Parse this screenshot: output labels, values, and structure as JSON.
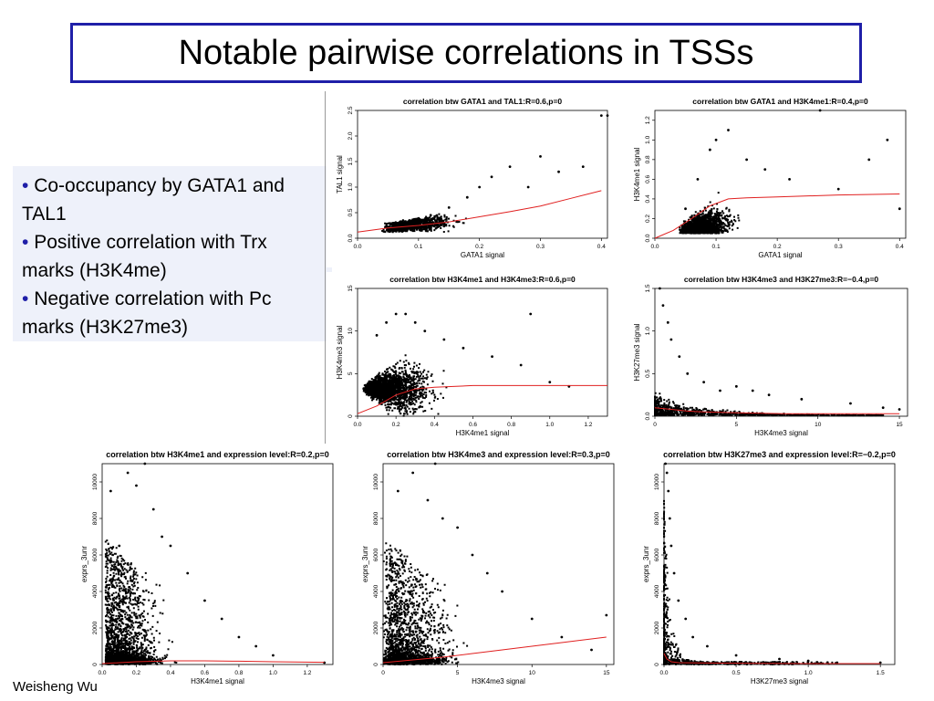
{
  "slide": {
    "title": "Notable pairwise correlations in TSSs",
    "bullets": [
      "Co-occupancy by GATA1 and TAL1",
      "Positive correlation with Trx marks (H3K4me)",
      "Negative correlation with Pc marks (H3K27me3)"
    ],
    "author": "Weisheng Wu"
  },
  "colors": {
    "title_border": "#1f1fa8",
    "bullet_dot": "#1f1fa8",
    "bullet_bg": "#eef1fa",
    "points": "#000000",
    "fit_line": "#e02020"
  },
  "chart_data": [
    {
      "type": "scatter",
      "title": "correlation btw GATA1 and TAL1:R=0.6,p=0",
      "xlabel": "GATA1 signal",
      "ylabel": "TAL1 signal",
      "xlim": [
        0,
        0.41
      ],
      "ylim": [
        0,
        2.5
      ],
      "xticks": [
        "0.0",
        "0.1",
        "0.2",
        "0.3",
        "0.4"
      ],
      "yticks": [
        "0.0",
        "0.5",
        "1.0",
        "1.5",
        "2.0",
        "2.5"
      ],
      "xtick_values": [
        0,
        0.1,
        0.2,
        0.3,
        0.4
      ],
      "ytick_values": [
        0,
        0.5,
        1,
        1.5,
        2,
        2.5
      ],
      "fit_line": {
        "x": [
          0.0,
          0.05,
          0.1,
          0.15,
          0.2,
          0.25,
          0.3,
          0.35,
          0.4
        ],
        "y": [
          0.12,
          0.2,
          0.25,
          0.32,
          0.42,
          0.52,
          0.63,
          0.78,
          0.93
        ]
      },
      "sample_points": {
        "x": [
          0.05,
          0.07,
          0.09,
          0.12,
          0.15,
          0.18,
          0.2,
          0.22,
          0.25,
          0.28,
          0.3,
          0.33,
          0.37,
          0.4,
          0.41
        ],
        "y": [
          0.2,
          0.25,
          0.3,
          0.45,
          0.6,
          0.8,
          1.0,
          1.2,
          1.4,
          1.0,
          1.6,
          1.3,
          1.4,
          2.4,
          2.4
        ]
      }
    },
    {
      "type": "scatter",
      "title": "correlation btw GATA1 and H3K4me1:R=0.4,p=0",
      "xlabel": "GATA1 signal",
      "ylabel": "H3K4me1 signal",
      "xlim": [
        0,
        0.41
      ],
      "ylim": [
        0,
        1.3
      ],
      "xticks": [
        "0.0",
        "0.1",
        "0.2",
        "0.3",
        "0.4"
      ],
      "yticks": [
        "0.0",
        "0.2",
        "0.4",
        "0.6",
        "0.8",
        "1.0",
        "1.2"
      ],
      "xtick_values": [
        0,
        0.1,
        0.2,
        0.3,
        0.4
      ],
      "ytick_values": [
        0,
        0.2,
        0.4,
        0.6,
        0.8,
        1.0,
        1.2
      ],
      "fit_line": {
        "x": [
          0.0,
          0.03,
          0.06,
          0.09,
          0.12,
          0.15,
          0.2,
          0.3,
          0.4
        ],
        "y": [
          0.0,
          0.08,
          0.2,
          0.33,
          0.4,
          0.41,
          0.42,
          0.44,
          0.45
        ]
      },
      "sample_points": {
        "x": [
          0.05,
          0.07,
          0.09,
          0.1,
          0.12,
          0.15,
          0.18,
          0.22,
          0.27,
          0.3,
          0.35,
          0.38,
          0.4
        ],
        "y": [
          0.3,
          0.6,
          0.9,
          1.0,
          1.1,
          0.8,
          0.7,
          0.6,
          1.3,
          0.5,
          0.8,
          1.0,
          0.3
        ]
      }
    },
    {
      "type": "scatter",
      "title": "correlation btw H3K4me1 and H3K4me3:R=0.6,p=0",
      "xlabel": "H3K4me1 signal",
      "ylabel": "H3K4me3 signal",
      "xlim": [
        0,
        1.3
      ],
      "ylim": [
        0,
        15
      ],
      "xticks": [
        "0.0",
        "0.2",
        "0.4",
        "0.6",
        "0.8",
        "1.0",
        "1.2"
      ],
      "yticks": [
        "0",
        "5",
        "10",
        "15"
      ],
      "xtick_values": [
        0,
        0.2,
        0.4,
        0.6,
        0.8,
        1.0,
        1.2
      ],
      "ytick_values": [
        0,
        5,
        10,
        15
      ],
      "fit_line": {
        "x": [
          0.0,
          0.1,
          0.2,
          0.3,
          0.4,
          0.6,
          0.8,
          1.0,
          1.3
        ],
        "y": [
          0.3,
          1.2,
          2.5,
          3.2,
          3.4,
          3.6,
          3.6,
          3.6,
          3.6
        ]
      },
      "sample_points": {
        "x": [
          0.1,
          0.15,
          0.2,
          0.25,
          0.3,
          0.35,
          0.45,
          0.55,
          0.7,
          0.85,
          1.0,
          1.1,
          0.9
        ],
        "y": [
          9.5,
          11,
          12,
          12,
          11,
          10,
          9,
          8,
          7,
          6,
          4,
          3.5,
          12
        ]
      }
    },
    {
      "type": "scatter",
      "title": "correlation btw H3K4me3 and H3K27me3:R=−0.4,p=0",
      "xlabel": "H3K4me3 signal",
      "ylabel": "H3K27me3 signal",
      "xlim": [
        0,
        15.5
      ],
      "ylim": [
        0,
        1.5
      ],
      "xticks": [
        "0",
        "5",
        "10",
        "15"
      ],
      "yticks": [
        "0.0",
        "0.5",
        "1.0",
        "1.5"
      ],
      "xtick_values": [
        0,
        5,
        10,
        15
      ],
      "ytick_values": [
        0,
        0.5,
        1,
        1.5
      ],
      "fit_line": {
        "x": [
          0,
          1,
          2,
          3,
          5,
          8,
          10,
          15
        ],
        "y": [
          0.1,
          0.08,
          0.06,
          0.05,
          0.04,
          0.03,
          0.03,
          0.03
        ]
      },
      "sample_points": {
        "x": [
          0.3,
          0.5,
          0.8,
          1.0,
          1.5,
          2,
          3,
          4,
          5,
          6,
          7,
          9,
          12,
          14,
          15
        ],
        "y": [
          1.5,
          1.3,
          1.1,
          0.9,
          0.7,
          0.5,
          0.4,
          0.3,
          0.35,
          0.3,
          0.25,
          0.2,
          0.15,
          0.1,
          0.08
        ]
      }
    },
    {
      "type": "scatter",
      "title": "correlation btw H3K4me1 and expression level:R=0.2,p=0",
      "xlabel": "H3K4me1 signal",
      "ylabel": "exprs_3unr",
      "xlim": [
        0,
        1.35
      ],
      "ylim": [
        0,
        11000
      ],
      "xticks": [
        "0.0",
        "0.2",
        "0.4",
        "0.6",
        "0.8",
        "1.0",
        "1.2"
      ],
      "yticks": [
        "0",
        "2000",
        "4000",
        "6000",
        "8000",
        "10000"
      ],
      "xtick_values": [
        0,
        0.2,
        0.4,
        0.6,
        0.8,
        1.0,
        1.2
      ],
      "ytick_values": [
        0,
        2000,
        4000,
        6000,
        8000,
        10000
      ],
      "fit_line": {
        "x": [
          0.0,
          0.2,
          0.4,
          0.6,
          0.8,
          1.0,
          1.3
        ],
        "y": [
          50,
          150,
          200,
          200,
          180,
          150,
          120
        ]
      },
      "sample_points": {
        "x": [
          0.05,
          0.1,
          0.15,
          0.2,
          0.25,
          0.3,
          0.35,
          0.4,
          0.5,
          0.6,
          0.7,
          0.8,
          0.9,
          1.0,
          1.3
        ],
        "y": [
          9500,
          6500,
          10500,
          9800,
          11000,
          8500,
          7000,
          6500,
          5000,
          3500,
          2500,
          1500,
          1000,
          500,
          100
        ]
      }
    },
    {
      "type": "scatter",
      "title": "correlation btw H3K4me3 and expression level:R=0.3,p=0",
      "xlabel": "H3K4me3 signal",
      "ylabel": "exprs_3unr",
      "xlim": [
        0,
        15.5
      ],
      "ylim": [
        0,
        11000
      ],
      "xticks": [
        "0",
        "5",
        "10",
        "15"
      ],
      "yticks": [
        "0",
        "2000",
        "4000",
        "6000",
        "8000",
        "10000"
      ],
      "xtick_values": [
        0,
        5,
        10,
        15
      ],
      "ytick_values": [
        0,
        2000,
        4000,
        6000,
        8000,
        10000
      ],
      "fit_line": {
        "x": [
          0,
          2,
          4,
          6,
          8,
          10,
          12,
          15
        ],
        "y": [
          100,
          250,
          400,
          600,
          800,
          1000,
          1200,
          1500
        ]
      },
      "sample_points": {
        "x": [
          1,
          2,
          3,
          3.5,
          4,
          5,
          6,
          7,
          8,
          10,
          12,
          14,
          15
        ],
        "y": [
          9500,
          10500,
          9000,
          11000,
          8000,
          7500,
          6000,
          5000,
          4000,
          2500,
          1500,
          800,
          2700
        ]
      }
    },
    {
      "type": "scatter",
      "title": "correlation btw H3K27me3 and expression level:R=−0.2,p=0",
      "xlabel": "H3K27me3 signal",
      "ylabel": "exprs_3unr",
      "xlim": [
        0,
        1.6
      ],
      "ylim": [
        0,
        11000
      ],
      "xticks": [
        "0.0",
        "0.5",
        "1.0",
        "1.5"
      ],
      "yticks": [
        "0",
        "2000",
        "4000",
        "6000",
        "8000",
        "10000"
      ],
      "xtick_values": [
        0,
        0.5,
        1.0,
        1.5
      ],
      "ytick_values": [
        0,
        2000,
        4000,
        6000,
        8000,
        10000
      ],
      "fit_line": {
        "x": [
          0,
          0.02,
          0.05,
          0.1,
          0.3,
          0.6,
          1.0,
          1.5
        ],
        "y": [
          600,
          300,
          150,
          100,
          80,
          60,
          50,
          50
        ]
      },
      "sample_points": {
        "x": [
          0.01,
          0.02,
          0.03,
          0.04,
          0.05,
          0.07,
          0.1,
          0.15,
          0.2,
          0.3,
          0.5,
          0.8,
          1.0,
          1.2,
          1.5
        ],
        "y": [
          11000,
          10500,
          9500,
          8000,
          6500,
          5000,
          3500,
          2500,
          1500,
          1000,
          500,
          300,
          200,
          100,
          100
        ]
      }
    }
  ]
}
